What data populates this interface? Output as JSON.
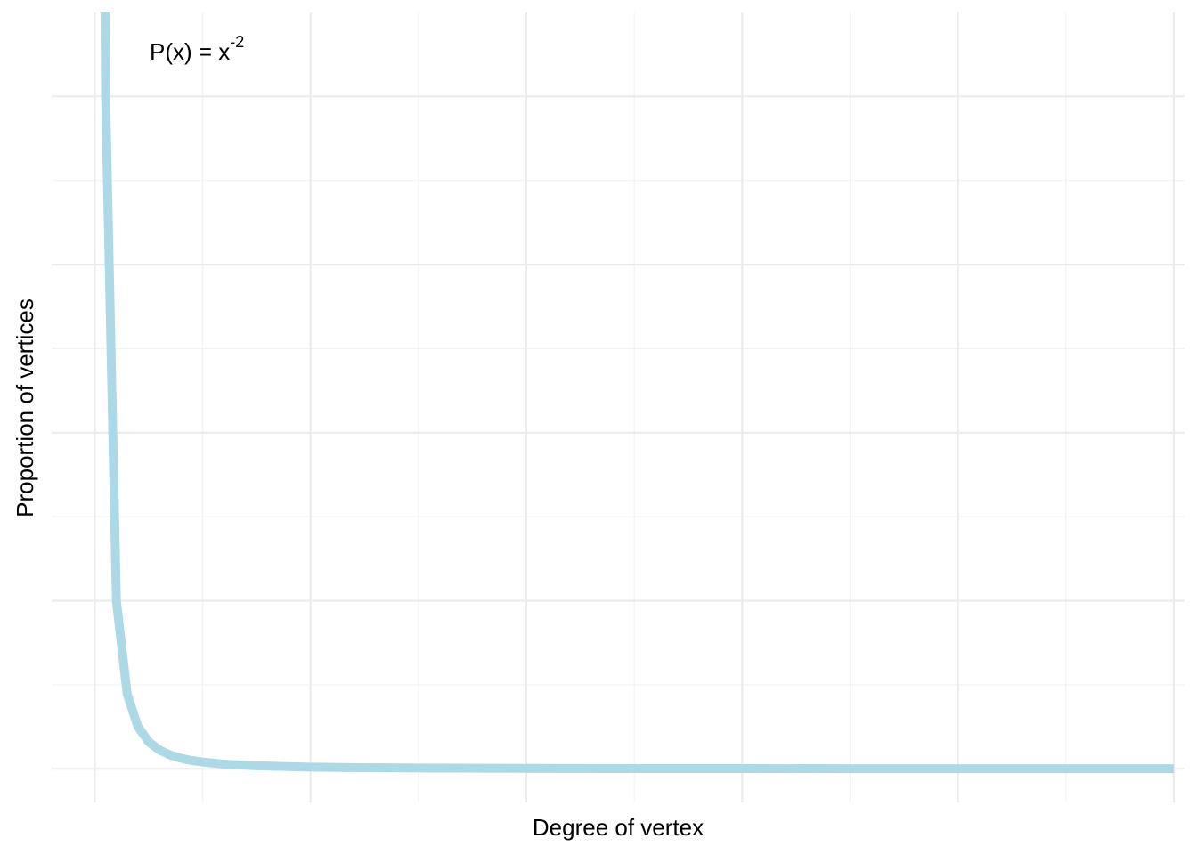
{
  "chart_data": {
    "type": "line",
    "title": "",
    "xlabel": "Degree of vertex",
    "ylabel": "Proportion of vertices",
    "annotation": {
      "base": "P(x) = x",
      "exponent": "-2"
    },
    "series": [
      {
        "function": "x^-2",
        "x": [
          0.9,
          1,
          2,
          3,
          4,
          5,
          6,
          7,
          8,
          9,
          10,
          12,
          15,
          20,
          25,
          30,
          40,
          50,
          60,
          70,
          80,
          90,
          100
        ],
        "y": [
          1.235,
          1.0,
          0.25,
          0.1111,
          0.0625,
          0.04,
          0.0278,
          0.0204,
          0.0156,
          0.0123,
          0.01,
          0.0069,
          0.0044,
          0.0025,
          0.0016,
          0.0011,
          0.0006,
          0.0004,
          0.0003,
          0.0002,
          0.0002,
          0.0001,
          0.0001
        ],
        "color": "#add8e6"
      }
    ],
    "xlim": [
      -4,
      101
    ],
    "ylim": [
      -0.05,
      1.125
    ],
    "x_major_breaks": [
      0,
      20,
      40,
      60,
      80,
      100
    ],
    "x_minor_breaks": [
      10,
      30,
      50,
      70,
      90
    ],
    "y_major_breaks": [
      0,
      0.25,
      0.5,
      0.75,
      1.0
    ],
    "y_minor_breaks": [
      0.125,
      0.375,
      0.625,
      0.875
    ],
    "tick_labels_shown": false,
    "grid": true,
    "legend": "none",
    "background": "#ffffff"
  }
}
